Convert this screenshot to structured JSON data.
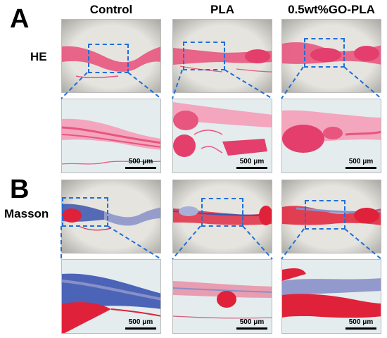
{
  "panels": [
    {
      "letter": "A",
      "stain": "HE"
    },
    {
      "letter": "B",
      "stain": "Masson"
    }
  ],
  "columns": [
    "Control",
    "PLA",
    "0.5wt%GO-PLA"
  ],
  "scale_bar_label": "500 μm",
  "colors": {
    "he_tissue": "#e8557e",
    "he_tissue_light": "#f3a6bd",
    "masson_red": "#e0213a",
    "masson_blue": "#3b55b0",
    "background_overview": "#d9d7d2",
    "background_zoom": "#e4ecee",
    "dashed": "#1f6fd8"
  }
}
